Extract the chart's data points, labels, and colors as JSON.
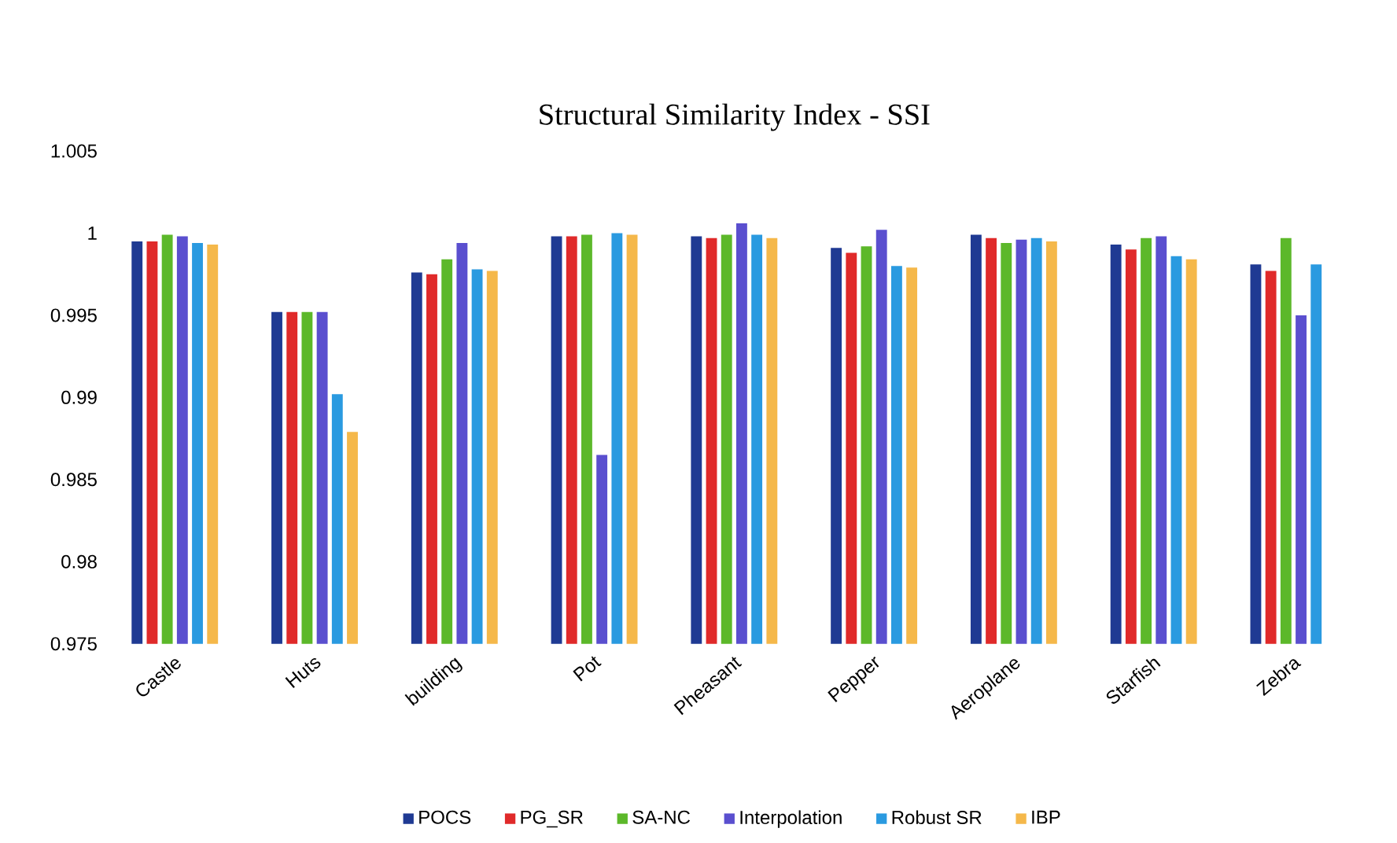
{
  "chart_data": {
    "type": "bar",
    "title": "Structural Similarity Index - SSI",
    "categories": [
      "Castle",
      "Huts",
      "building",
      "Pot",
      "Pheasant",
      "Pepper",
      "Aeroplane",
      "Starfish",
      "Zebra"
    ],
    "series": [
      {
        "name": "POCS",
        "color": "#1f3a93",
        "values": [
          0.9995,
          0.9952,
          0.9976,
          0.9998,
          0.9998,
          0.9991,
          0.9999,
          0.9993,
          0.9981
        ]
      },
      {
        "name": "PG_SR",
        "color": "#e02a2a",
        "values": [
          0.9995,
          0.9952,
          0.9975,
          0.9998,
          0.9997,
          0.9988,
          0.9997,
          0.999,
          0.9977
        ]
      },
      {
        "name": "SA-NC",
        "color": "#5cb82a",
        "values": [
          0.9999,
          0.9952,
          0.9984,
          0.9999,
          0.9999,
          0.9992,
          0.9994,
          0.9997,
          0.9997
        ]
      },
      {
        "name": "Interpolation",
        "color": "#5a4fcf",
        "values": [
          0.9998,
          0.9952,
          0.9994,
          0.9865,
          1.0006,
          1.0002,
          0.9996,
          0.9998,
          0.995
        ]
      },
      {
        "name": "Robust SR",
        "color": "#2a9ae0",
        "values": [
          0.9994,
          0.9902,
          0.9978,
          1.0,
          0.9999,
          0.998,
          0.9997,
          0.9986,
          0.9981
        ]
      },
      {
        "name": "IBP",
        "color": "#f5b84a",
        "values": [
          0.9993,
          0.9879,
          0.9977,
          0.9999,
          0.9997,
          0.9979,
          0.9995,
          0.9984,
          null
        ]
      }
    ],
    "ylim": [
      0.975,
      1.005
    ],
    "yticks": [
      0.975,
      0.98,
      0.985,
      0.99,
      0.995,
      1,
      1.005
    ],
    "grid": false,
    "legend": "bottom"
  }
}
